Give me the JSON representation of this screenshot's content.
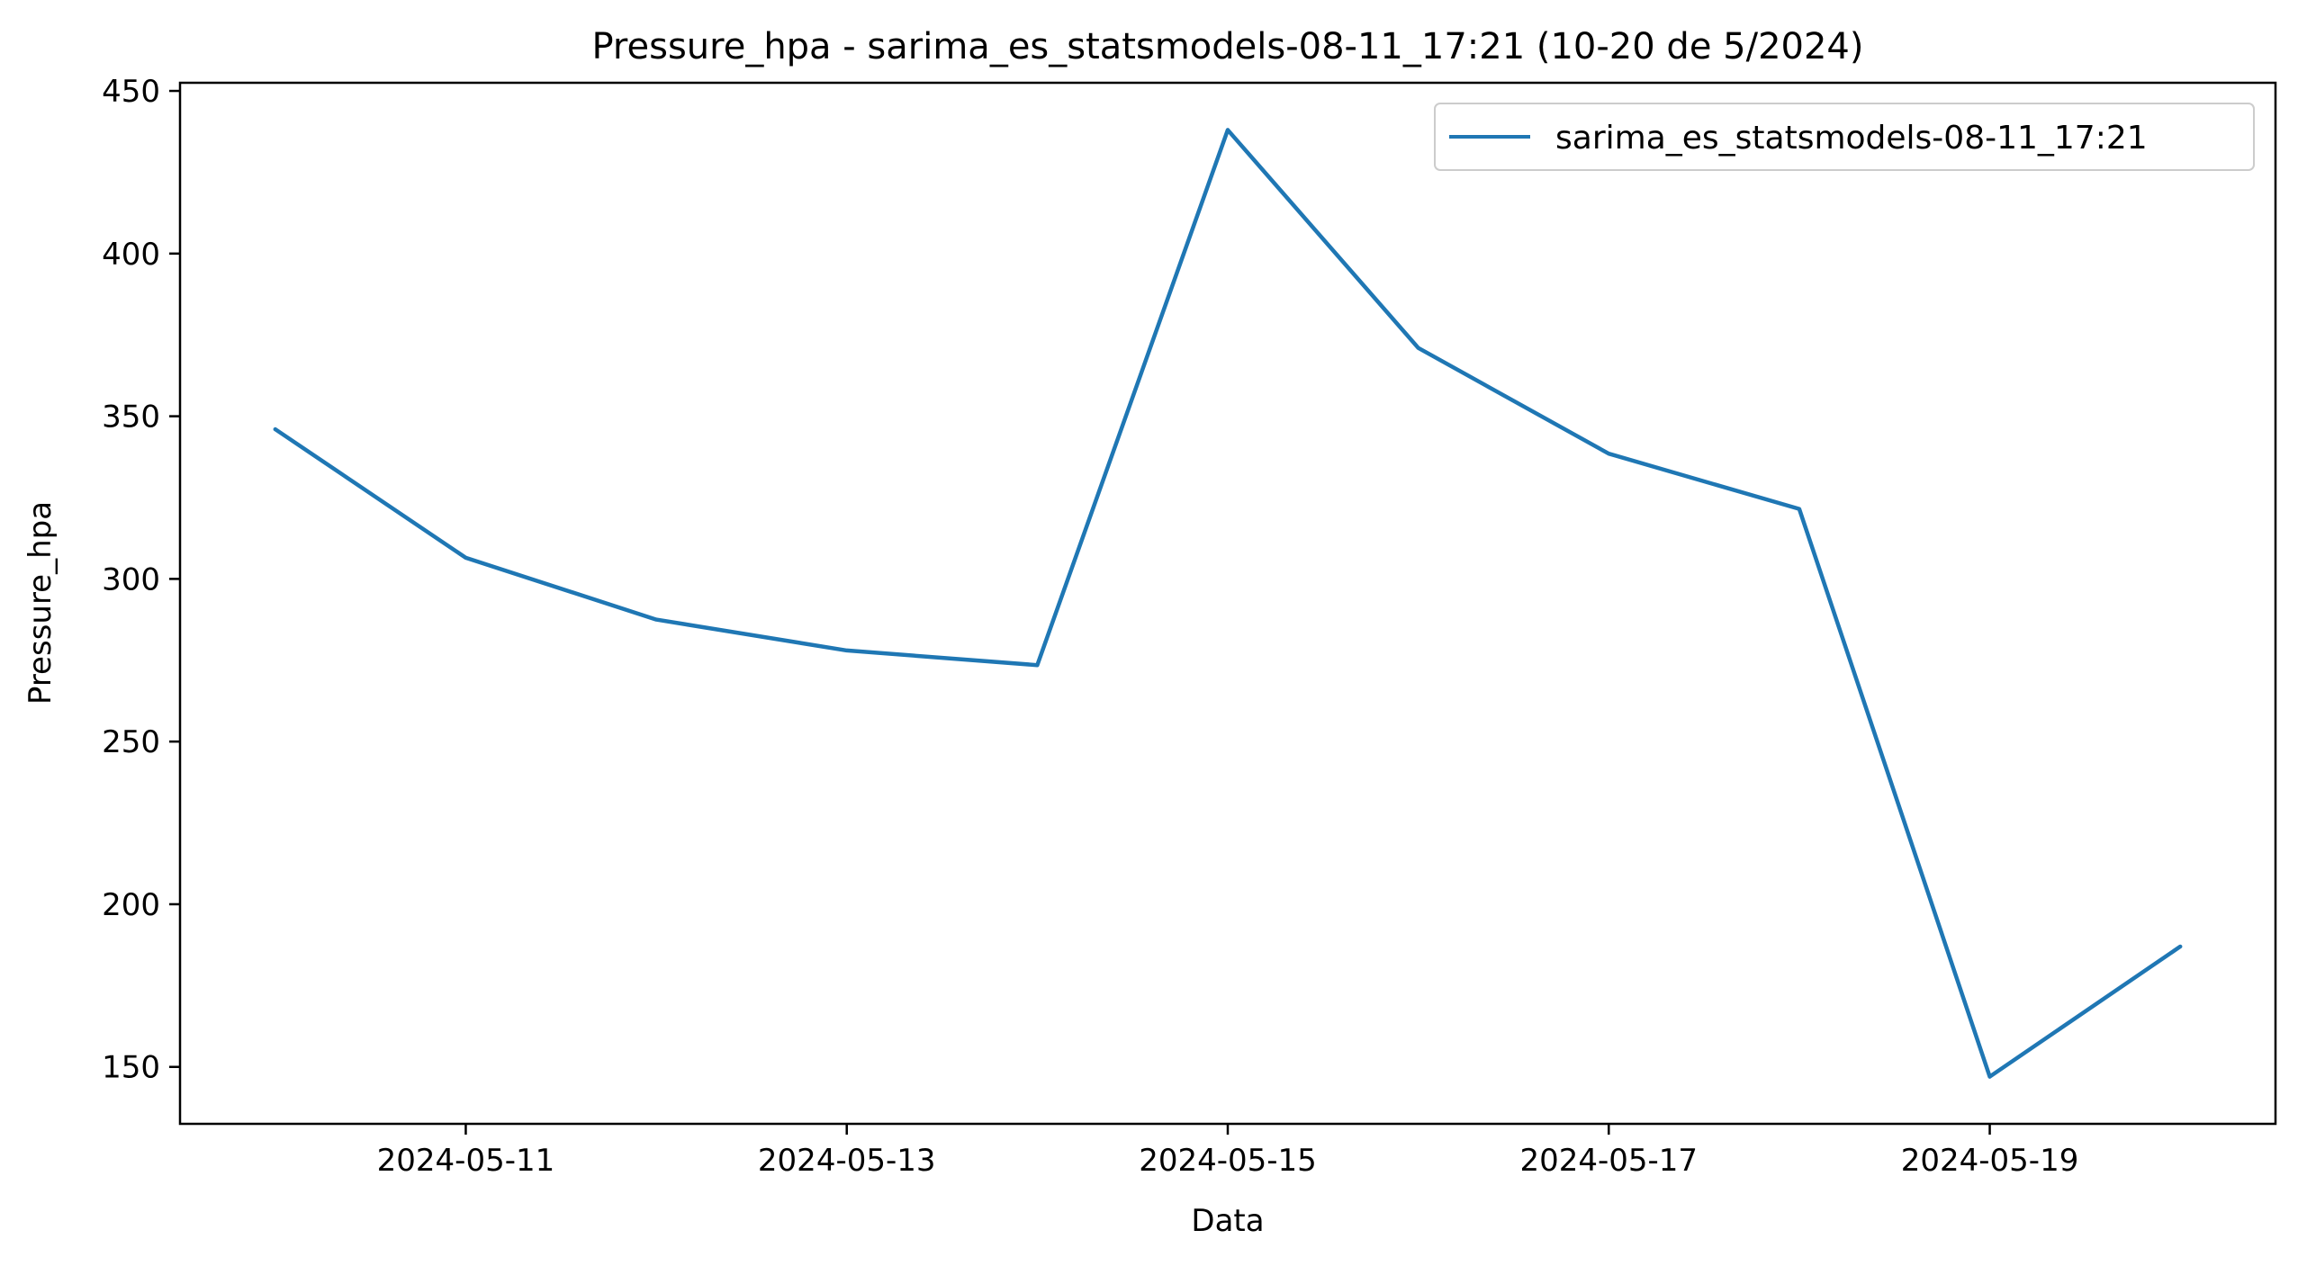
{
  "colors": {
    "series": "#1f77b4",
    "axis": "#000000",
    "background": "#ffffff",
    "legend_border": "#cccccc"
  },
  "chart_data": {
    "type": "line",
    "title": "Pressure_hpa - sarima_es_statsmodels-08-11_17:21 (10-20 de 5/2024)",
    "xlabel": "Data",
    "ylabel": "Pressure_hpa",
    "x": [
      "2024-05-10",
      "2024-05-11",
      "2024-05-12",
      "2024-05-13",
      "2024-05-14",
      "2024-05-15",
      "2024-05-16",
      "2024-05-17",
      "2024-05-18",
      "2024-05-19",
      "2024-05-20"
    ],
    "series": [
      {
        "name": "sarima_es_statsmodels-08-11_17:21",
        "values": [
          346,
          306.5,
          287.5,
          278,
          273.5,
          438,
          371,
          338.5,
          321.5,
          147,
          187
        ]
      }
    ],
    "xticks": [
      "2024-05-11",
      "2024-05-13",
      "2024-05-15",
      "2024-05-17",
      "2024-05-19"
    ],
    "yticks": [
      150,
      200,
      250,
      300,
      350,
      400,
      450
    ],
    "xlim": [
      "2024-05-09 12:00",
      "2024-05-20 12:00"
    ],
    "ylim": [
      132.5,
      452.5
    ],
    "grid": false,
    "legend_position": "top-right"
  }
}
